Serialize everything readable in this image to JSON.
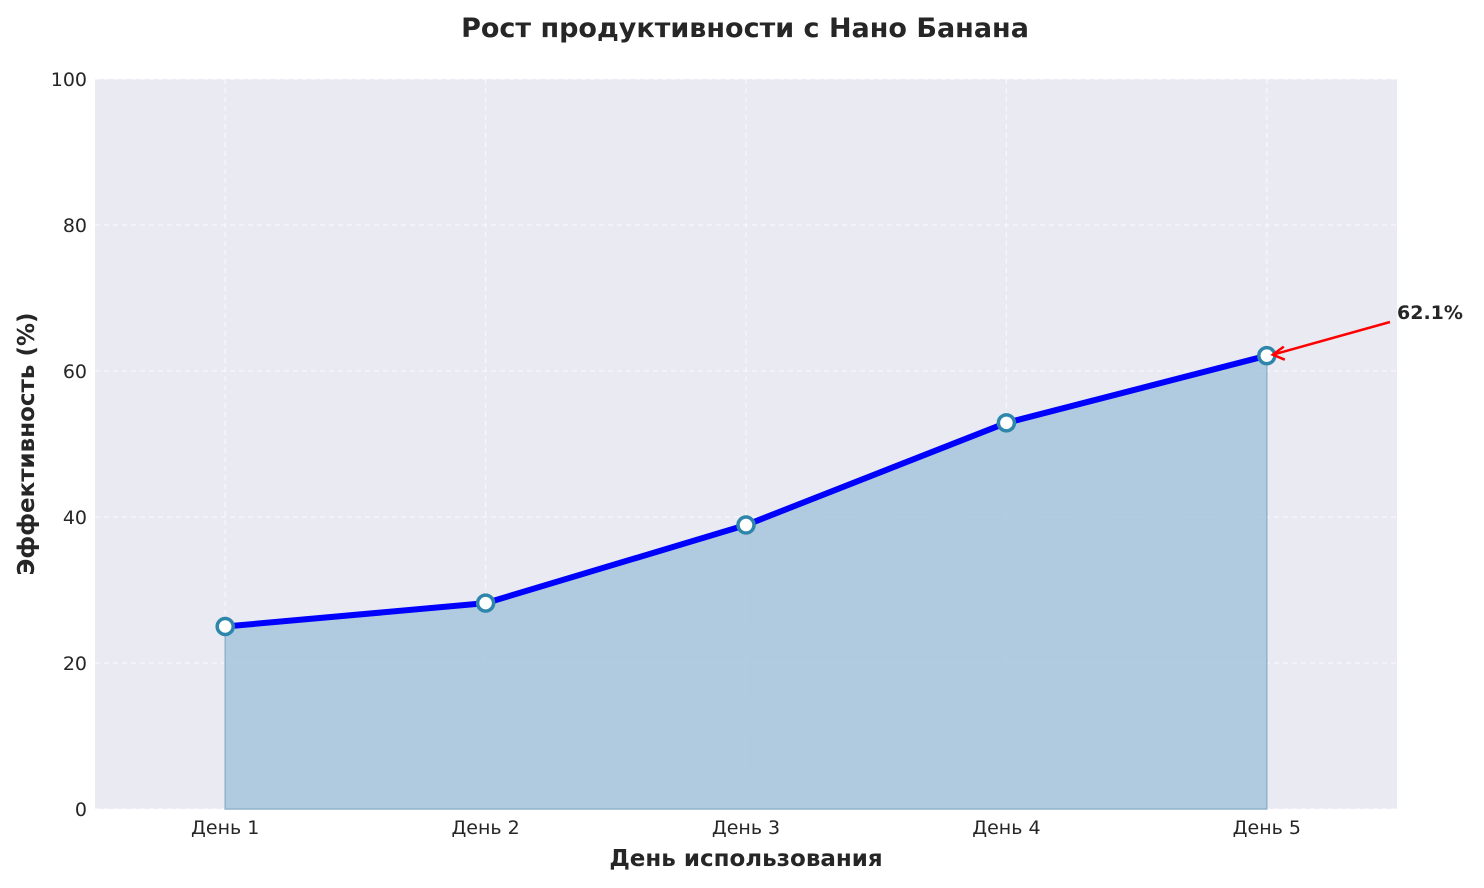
{
  "chart_data": {
    "type": "area",
    "title": "Рост продуктивности с Нано Банана",
    "xlabel": "День использования",
    "ylabel": "Эффективность (%)",
    "categories": [
      "День 1",
      "День 2",
      "День 3",
      "День 4",
      "День 5"
    ],
    "values": [
      25.0,
      28.2,
      38.9,
      52.9,
      62.1
    ],
    "ylim": [
      0,
      100
    ],
    "yticks": [
      0,
      20,
      40,
      60,
      80,
      100
    ],
    "grid": true,
    "annotation": {
      "text": "62.1%",
      "category_index": 4,
      "value": 62.1,
      "arrow_color": "#ff0000"
    },
    "colors": {
      "line": "#0000ff",
      "fill": "#a6c4dc",
      "marker_edge": "#2e86ab",
      "marker_face": "#ffffff",
      "background": "#eaeaf2"
    }
  }
}
